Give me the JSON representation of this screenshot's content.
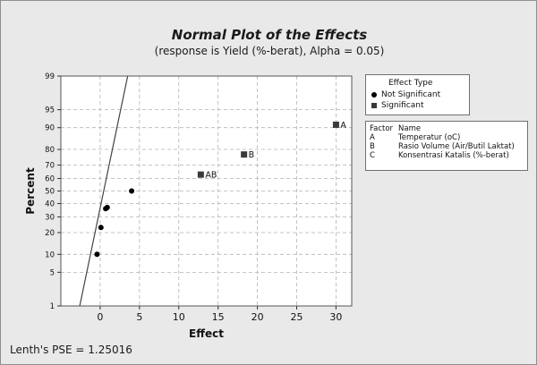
{
  "chart_data": {
    "type": "scatter",
    "title": "Normal Plot of the Effects",
    "subtitle": "(response is Yield (%-berat), Alpha = 0.05)",
    "xlabel": "Effect",
    "ylabel": "Percent",
    "xlim": [
      -5,
      32
    ],
    "ylim": [
      1,
      99
    ],
    "y_scale": "normal-probability",
    "x_ticks": [
      "0",
      "5",
      "10",
      "15",
      "20",
      "25",
      "30"
    ],
    "y_ticks": [
      "1",
      "5",
      "10",
      "20",
      "30",
      "40",
      "50",
      "60",
      "70",
      "80",
      "90",
      "95",
      "99"
    ],
    "grid": true,
    "legend_position": "right",
    "series": [
      {
        "name": "Not Significant",
        "marker": "circle",
        "color": "#000000",
        "points": [
          {
            "x": -0.4,
            "y": 10,
            "label": ""
          },
          {
            "x": 0.1,
            "y": 23,
            "label": ""
          },
          {
            "x": 0.7,
            "y": 36,
            "label": ""
          },
          {
            "x": 0.9,
            "y": 37,
            "label": ""
          },
          {
            "x": 4.0,
            "y": 50,
            "label": ""
          }
        ]
      },
      {
        "name": "Significant",
        "marker": "square",
        "color": "#3a3a3a",
        "points": [
          {
            "x": 12.8,
            "y": 63,
            "label": "AB"
          },
          {
            "x": 18.3,
            "y": 77,
            "label": "B"
          },
          {
            "x": 30.0,
            "y": 91,
            "label": "A"
          }
        ]
      }
    ],
    "reference_line": {
      "color": "#444444",
      "points": [
        {
          "x": -2.6,
          "y": 1
        },
        {
          "x": 3.5,
          "y": 99
        }
      ]
    },
    "effect_legend": {
      "title": "Effect Type",
      "items": [
        "Not Significant",
        "Significant"
      ]
    },
    "factor_legend": {
      "header_factor": "Factor",
      "header_name": "Name",
      "rows": [
        {
          "factor": "A",
          "name": "Temperatur (oC)"
        },
        {
          "factor": "B",
          "name": "Rasio Volume (Air/Butil Laktat)"
        },
        {
          "factor": "C",
          "name": "Konsentrasi Katalis (%-berat)"
        }
      ]
    },
    "footnote": "Lenth's PSE = 1.25016"
  }
}
